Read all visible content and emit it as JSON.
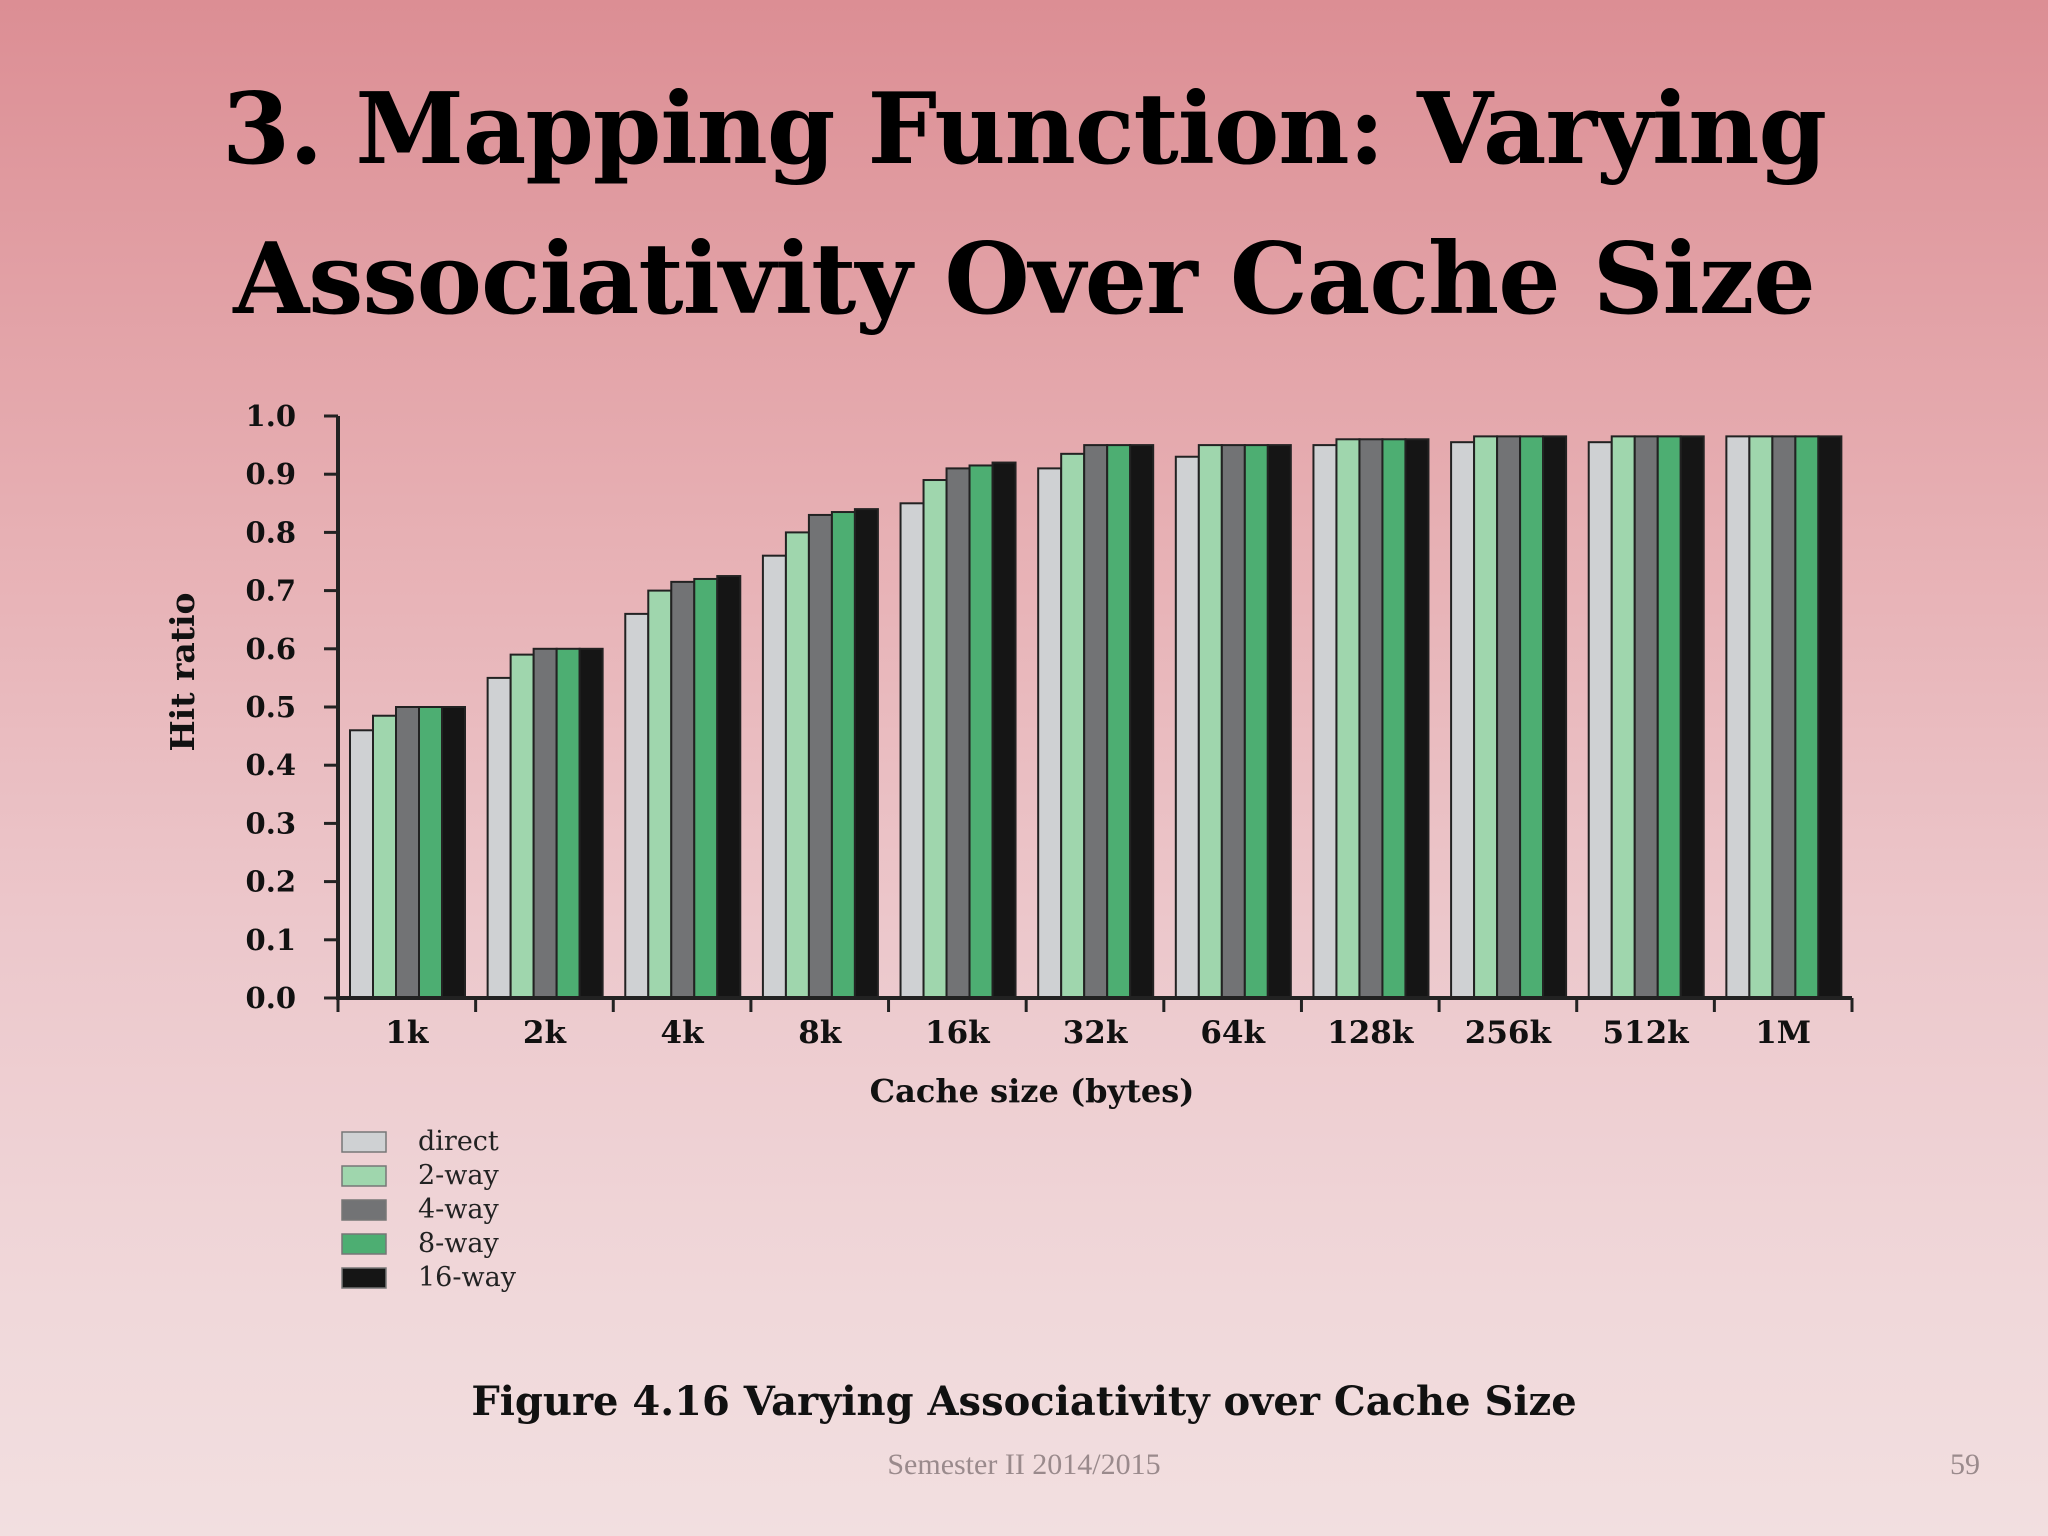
{
  "slide": {
    "title_line1": "3. Mapping Function: Varying",
    "title_line2": "Associativity Over Cache Size",
    "caption": "Figure 4.16  Varying Associativity over Cache Size",
    "footer_text": "Semester II 2014/2015",
    "page_number": "59"
  },
  "colors": {
    "direct": "#cfd1d3",
    "2-way": "#9fd6ad",
    "4-way": "#727375",
    "8-way": "#4dae72",
    "16-way": "#151515"
  },
  "chart_data": {
    "type": "bar",
    "categories": [
      "1k",
      "2k",
      "4k",
      "8k",
      "16k",
      "32k",
      "64k",
      "128k",
      "256k",
      "512k",
      "1M"
    ],
    "series": [
      {
        "name": "direct",
        "values": [
          0.46,
          0.55,
          0.66,
          0.76,
          0.85,
          0.91,
          0.93,
          0.95,
          0.955,
          0.955,
          0.965
        ]
      },
      {
        "name": "2-way",
        "values": [
          0.485,
          0.59,
          0.7,
          0.8,
          0.89,
          0.935,
          0.95,
          0.96,
          0.965,
          0.965,
          0.965
        ]
      },
      {
        "name": "4-way",
        "values": [
          0.5,
          0.6,
          0.715,
          0.83,
          0.91,
          0.95,
          0.95,
          0.96,
          0.965,
          0.965,
          0.965
        ]
      },
      {
        "name": "8-way",
        "values": [
          0.5,
          0.6,
          0.72,
          0.835,
          0.915,
          0.95,
          0.95,
          0.96,
          0.965,
          0.965,
          0.965
        ]
      },
      {
        "name": "16-way",
        "values": [
          0.5,
          0.6,
          0.725,
          0.84,
          0.92,
          0.95,
          0.95,
          0.96,
          0.965,
          0.965,
          0.965
        ]
      }
    ],
    "title": "",
    "xlabel": "Cache size (bytes)",
    "ylabel": "Hit ratio",
    "ylim": [
      0,
      1.0
    ],
    "yticks": [
      "0.0",
      "0.1",
      "0.2",
      "0.3",
      "0.4",
      "0.5",
      "0.6",
      "0.7",
      "0.8",
      "0.9",
      "1.0"
    ],
    "grid": false,
    "legend_position": "bottom-left"
  }
}
